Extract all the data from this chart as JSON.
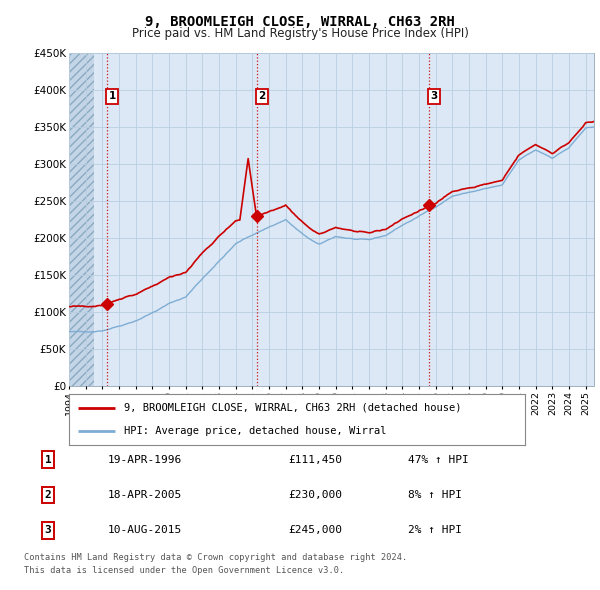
{
  "title": "9, BROOMLEIGH CLOSE, WIRRAL, CH63 2RH",
  "subtitle": "Price paid vs. HM Land Registry's House Price Index (HPI)",
  "hpi_color": "#7eadd4",
  "price_color": "#cc0000",
  "background_color": "#dce8f5",
  "hatch_region_color": "#c5d5e8",
  "grid_color": "#b8cfe0",
  "ymin": 0,
  "ymax": 450000,
  "yticks": [
    0,
    50000,
    100000,
    150000,
    200000,
    250000,
    300000,
    350000,
    400000,
    450000
  ],
  "ytick_labels": [
    "£0",
    "£50K",
    "£100K",
    "£150K",
    "£200K",
    "£250K",
    "£300K",
    "£350K",
    "£400K",
    "£450K"
  ],
  "sale_dates_decimal": [
    1996.29,
    2005.29,
    2015.6
  ],
  "sale_prices": [
    111450,
    230000,
    245000
  ],
  "sale_labels": [
    "1",
    "2",
    "3"
  ],
  "legend_entries": [
    "9, BROOMLEIGH CLOSE, WIRRAL, CH63 2RH (detached house)",
    "HPI: Average price, detached house, Wirral"
  ],
  "table_entries": [
    [
      "1",
      "19-APR-1996",
      "£111,450",
      "47% ↑ HPI"
    ],
    [
      "2",
      "18-APR-2005",
      "£230,000",
      "8% ↑ HPI"
    ],
    [
      "3",
      "10-AUG-2015",
      "£245,000",
      "2% ↑ HPI"
    ]
  ],
  "footer": "Contains HM Land Registry data © Crown copyright and database right 2024.\nThis data is licensed under the Open Government Licence v3.0.",
  "xmin_year": 1994.0,
  "xmax_year": 2025.5,
  "xtick_years": [
    1994,
    1995,
    1996,
    1997,
    1998,
    1999,
    2000,
    2001,
    2002,
    2003,
    2004,
    2005,
    2006,
    2007,
    2008,
    2009,
    2010,
    2011,
    2012,
    2013,
    2014,
    2015,
    2016,
    2017,
    2018,
    2019,
    2020,
    2021,
    2022,
    2023,
    2024,
    2025
  ]
}
